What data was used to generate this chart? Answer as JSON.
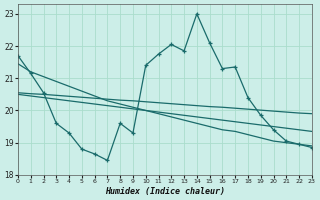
{
  "xlabel": "Humidex (Indice chaleur)",
  "bg_color": "#cceee8",
  "grid_color": "#aaddcc",
  "line_color": "#1a6b6b",
  "xlim": [
    0,
    23
  ],
  "ylim": [
    18,
    23.3
  ],
  "yticks": [
    18,
    19,
    20,
    21,
    22,
    23
  ],
  "xticks": [
    0,
    1,
    2,
    3,
    4,
    5,
    6,
    7,
    8,
    9,
    10,
    11,
    12,
    13,
    14,
    15,
    16,
    17,
    18,
    19,
    20,
    21,
    22,
    23
  ],
  "line1_y": [
    21.7,
    21.15,
    20.55,
    19.6,
    19.3,
    18.8,
    18.65,
    18.45,
    19.6,
    19.3,
    21.4,
    21.75,
    22.05,
    21.85,
    23.0,
    22.1,
    21.3,
    21.35,
    20.4,
    19.85,
    19.4,
    19.05,
    18.95,
    18.85
  ],
  "line2_y": [
    21.45,
    21.2,
    21.05,
    20.9,
    20.75,
    20.6,
    20.45,
    20.3,
    20.2,
    20.1,
    20.0,
    19.9,
    19.8,
    19.7,
    19.6,
    19.5,
    19.4,
    19.35,
    19.25,
    19.15,
    19.05,
    19.0,
    18.95,
    18.9
  ],
  "line3_y": [
    20.55,
    20.52,
    20.5,
    20.47,
    20.44,
    20.41,
    20.38,
    20.35,
    20.32,
    20.3,
    20.27,
    20.24,
    20.21,
    20.18,
    20.15,
    20.12,
    20.1,
    20.07,
    20.04,
    20.01,
    19.98,
    19.95,
    19.92,
    19.9
  ],
  "line4_y": [
    20.5,
    20.45,
    20.4,
    20.35,
    20.3,
    20.25,
    20.2,
    20.15,
    20.1,
    20.05,
    20.0,
    19.95,
    19.9,
    19.85,
    19.8,
    19.75,
    19.7,
    19.65,
    19.6,
    19.55,
    19.5,
    19.45,
    19.4,
    19.35
  ]
}
